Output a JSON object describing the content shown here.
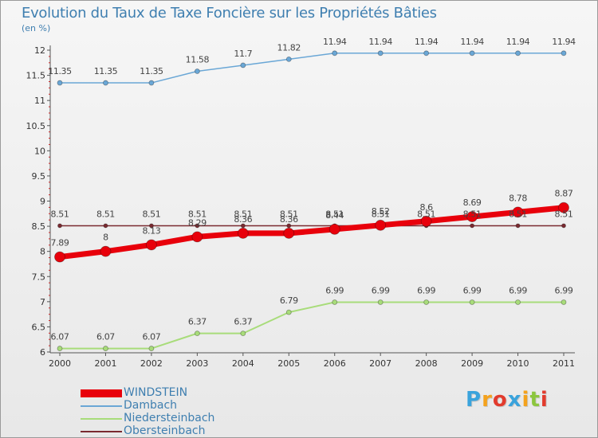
{
  "chart_data": {
    "type": "line",
    "title": "Evolution du Taux de Taxe Foncière sur les Propriétés Bâties",
    "ylabel": "(en %)",
    "ylim": [
      6,
      12
    ],
    "yticks": [
      6,
      6.5,
      7,
      7.5,
      8,
      8.5,
      9,
      9.5,
      10,
      10.5,
      11,
      11.5,
      12
    ],
    "ytick_labels": [
      "6",
      "6.5",
      "7",
      "7.5",
      "8",
      "8.5",
      "9",
      "9.5",
      "10",
      "10.5",
      "11",
      "11.5",
      "12"
    ],
    "categories": [
      "2000",
      "2001",
      "2002",
      "2003",
      "2004",
      "2005",
      "2006",
      "2007",
      "2008",
      "2009",
      "2010",
      "2011"
    ],
    "series": [
      {
        "name": "WINDSTEIN",
        "color": "#e8000b",
        "values": [
          7.89,
          8,
          8.13,
          8.29,
          8.36,
          8.36,
          8.44,
          8.52,
          8.6,
          8.69,
          8.78,
          8.87
        ],
        "labels": [
          "7.89",
          "8",
          "8.13",
          "8.29",
          "8.36",
          "8.36",
          "8.44",
          "8.52",
          "8.6",
          "8.69",
          "8.78",
          "8.87"
        ]
      },
      {
        "name": "Dambach",
        "color": "#6aa7d6",
        "values": [
          11.35,
          11.35,
          11.35,
          11.58,
          11.7,
          11.82,
          11.94,
          11.94,
          11.94,
          11.94,
          11.94,
          11.94
        ],
        "labels": [
          "11.35",
          "11.35",
          "11.35",
          "11.58",
          "11.7",
          "11.82",
          "11.94",
          "11.94",
          "11.94",
          "11.94",
          "11.94",
          "11.94"
        ]
      },
      {
        "name": "Niedersteinbach",
        "color": "#a8dc7a",
        "values": [
          6.07,
          6.07,
          6.07,
          6.37,
          6.37,
          6.79,
          6.99,
          6.99,
          6.99,
          6.99,
          6.99,
          6.99
        ],
        "labels": [
          "6.07",
          "6.07",
          "6.07",
          "6.37",
          "6.37",
          "6.79",
          "6.99",
          "6.99",
          "6.99",
          "6.99",
          "6.99",
          "6.99"
        ]
      },
      {
        "name": "Obersteinbach",
        "color": "#7a2a30",
        "values": [
          8.51,
          8.51,
          8.51,
          8.51,
          8.51,
          8.51,
          8.51,
          8.51,
          8.51,
          8.51,
          8.51,
          8.51
        ],
        "labels": [
          "8.51",
          "8.51",
          "8.51",
          "8.51",
          "8.51",
          "8.51",
          "8.51",
          "8.51",
          "8.51",
          "8.51",
          "8.51",
          "8.51"
        ]
      }
    ],
    "grid": false,
    "legend_position": "bottom-left"
  },
  "brand": {
    "letters": [
      "P",
      "r",
      "o",
      "x",
      "i",
      "t",
      "i"
    ],
    "colors": [
      "#3aa3dc",
      "#f4a21d",
      "#e23b2d",
      "#3aa3dc",
      "#f4a21d",
      "#8cc63e",
      "#e23b2d"
    ]
  }
}
